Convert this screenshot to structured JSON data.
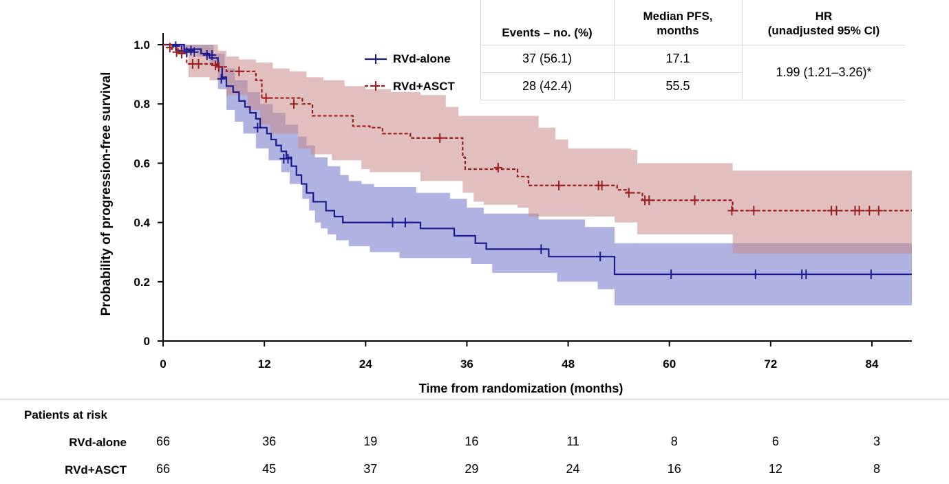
{
  "chart_data": {
    "type": "line",
    "subtype": "kaplan-meier",
    "ylabel": "Probability of progression-free survival",
    "xlabel": "Time from randomization (months)",
    "xlim": [
      0,
      88
    ],
    "ylim": [
      0,
      1.04
    ],
    "xticks": [
      0,
      12,
      24,
      36,
      48,
      60,
      72,
      84
    ],
    "yticks": [
      "0",
      "0.2",
      "0.4",
      "0.6",
      "0.8",
      "1.0"
    ],
    "yticks_values": [
      0,
      0.2,
      0.4,
      0.6,
      0.8,
      1.0
    ],
    "grid": false,
    "series": [
      {
        "name": "RVd-alone",
        "color": "#1a1a8c",
        "band_color": "#6f73c8",
        "line_style": "solid",
        "steps": [
          [
            0,
            1.0
          ],
          [
            2.5,
            0.985
          ],
          [
            4.5,
            0.97
          ],
          [
            5.5,
            0.955
          ],
          [
            6.5,
            0.925
          ],
          [
            7,
            0.89
          ],
          [
            7.5,
            0.86
          ],
          [
            8.3,
            0.84
          ],
          [
            9,
            0.81
          ],
          [
            9.7,
            0.79
          ],
          [
            10.3,
            0.77
          ],
          [
            11,
            0.75
          ],
          [
            11.5,
            0.72
          ],
          [
            12.3,
            0.7
          ],
          [
            12.8,
            0.68
          ],
          [
            13.4,
            0.66
          ],
          [
            14,
            0.64
          ],
          [
            14.6,
            0.62
          ],
          [
            15.2,
            0.59
          ],
          [
            15.8,
            0.56
          ],
          [
            16.4,
            0.53
          ],
          [
            17,
            0.5
          ],
          [
            17.8,
            0.47
          ],
          [
            19.3,
            0.44
          ],
          [
            20.3,
            0.42
          ],
          [
            21.3,
            0.4
          ],
          [
            30.5,
            0.38
          ],
          [
            34.5,
            0.355
          ],
          [
            37,
            0.33
          ],
          [
            38.3,
            0.31
          ],
          [
            45.7,
            0.285
          ],
          [
            53.5,
            0.225
          ],
          [
            88,
            0.225
          ]
        ],
        "upper": [
          [
            0,
            1.0
          ],
          [
            4.5,
            1.0
          ],
          [
            6,
            0.97
          ],
          [
            7.3,
            0.92
          ],
          [
            8.5,
            0.88
          ],
          [
            10,
            0.84
          ],
          [
            11.5,
            0.8
          ],
          [
            13,
            0.77
          ],
          [
            14.5,
            0.73
          ],
          [
            16,
            0.69
          ],
          [
            17,
            0.66
          ],
          [
            18,
            0.62
          ],
          [
            19.5,
            0.59
          ],
          [
            21,
            0.56
          ],
          [
            22,
            0.54
          ],
          [
            23.5,
            0.53
          ],
          [
            25,
            0.52
          ],
          [
            30,
            0.5
          ],
          [
            34,
            0.48
          ],
          [
            36,
            0.45
          ],
          [
            38,
            0.43
          ],
          [
            44.5,
            0.41
          ],
          [
            50,
            0.385
          ],
          [
            53.5,
            0.33
          ],
          [
            88,
            0.33
          ]
        ],
        "lower": [
          [
            0,
            1.0
          ],
          [
            2,
            0.99
          ],
          [
            4,
            0.96
          ],
          [
            5.5,
            0.93
          ],
          [
            6.5,
            0.85
          ],
          [
            7.5,
            0.78
          ],
          [
            8.5,
            0.74
          ],
          [
            9.5,
            0.7
          ],
          [
            11,
            0.65
          ],
          [
            12.5,
            0.61
          ],
          [
            14,
            0.57
          ],
          [
            15,
            0.53
          ],
          [
            16.5,
            0.48
          ],
          [
            17.3,
            0.44
          ],
          [
            18,
            0.4
          ],
          [
            18.7,
            0.38
          ],
          [
            19.5,
            0.36
          ],
          [
            20.5,
            0.34
          ],
          [
            22,
            0.32
          ],
          [
            24.5,
            0.3
          ],
          [
            28,
            0.28
          ],
          [
            36.5,
            0.26
          ],
          [
            39,
            0.23
          ],
          [
            46.7,
            0.2
          ],
          [
            51.5,
            0.175
          ],
          [
            53.5,
            0.12
          ],
          [
            88,
            0.12
          ]
        ],
        "censors": [
          [
            1.5,
            0.995
          ],
          [
            2.2,
            0.98
          ],
          [
            2.8,
            0.975
          ],
          [
            3.3,
            0.98
          ],
          [
            3.7,
            0.975
          ],
          [
            5.2,
            0.965
          ],
          [
            5.8,
            0.965
          ],
          [
            6.9,
            0.885
          ],
          [
            11.2,
            0.72
          ],
          [
            14.3,
            0.615
          ],
          [
            14.8,
            0.615
          ],
          [
            27.2,
            0.4
          ],
          [
            28.7,
            0.4
          ],
          [
            44.8,
            0.31
          ],
          [
            51.8,
            0.285
          ],
          [
            60.2,
            0.225
          ],
          [
            70.2,
            0.225
          ],
          [
            75.7,
            0.225
          ],
          [
            76.2,
            0.225
          ],
          [
            83.9,
            0.225
          ]
        ]
      },
      {
        "name": "RVd+ASCT",
        "color": "#9b1c1c",
        "band_color": "#c98a8a",
        "line_style": "dashed",
        "steps": [
          [
            0,
            1.0
          ],
          [
            1,
            0.985
          ],
          [
            2,
            0.97
          ],
          [
            2.8,
            0.935
          ],
          [
            6.5,
            0.925
          ],
          [
            7.5,
            0.91
          ],
          [
            9,
            0.91
          ],
          [
            11,
            0.88
          ],
          [
            11.7,
            0.82
          ],
          [
            16.5,
            0.8
          ],
          [
            17.7,
            0.76
          ],
          [
            22.5,
            0.725
          ],
          [
            24.5,
            0.72
          ],
          [
            26,
            0.7
          ],
          [
            29.3,
            0.685
          ],
          [
            35.5,
            0.62
          ],
          [
            35.8,
            0.58
          ],
          [
            42,
            0.555
          ],
          [
            43.3,
            0.525
          ],
          [
            53.8,
            0.51
          ],
          [
            55,
            0.5
          ],
          [
            56.8,
            0.475
          ],
          [
            67.5,
            0.44
          ],
          [
            88,
            0.44
          ]
        ],
        "upper": [
          [
            0,
            1.0
          ],
          [
            5,
            1.0
          ],
          [
            6.5,
            0.98
          ],
          [
            7.5,
            0.96
          ],
          [
            9,
            0.95
          ],
          [
            11,
            0.94
          ],
          [
            13,
            0.92
          ],
          [
            15,
            0.91
          ],
          [
            17,
            0.89
          ],
          [
            19,
            0.88
          ],
          [
            21.5,
            0.86
          ],
          [
            24,
            0.85
          ],
          [
            27,
            0.84
          ],
          [
            30.5,
            0.83
          ],
          [
            33.5,
            0.79
          ],
          [
            35,
            0.76
          ],
          [
            44.5,
            0.72
          ],
          [
            46.5,
            0.68
          ],
          [
            48,
            0.65
          ],
          [
            55.5,
            0.645
          ],
          [
            56.2,
            0.6
          ],
          [
            67,
            0.6
          ],
          [
            67.5,
            0.575
          ],
          [
            88,
            0.575
          ]
        ],
        "lower": [
          [
            0,
            1.0
          ],
          [
            1.5,
            0.97
          ],
          [
            3,
            0.89
          ],
          [
            5.5,
            0.88
          ],
          [
            7.5,
            0.83
          ],
          [
            10,
            0.78
          ],
          [
            11.5,
            0.73
          ],
          [
            12.7,
            0.7
          ],
          [
            16,
            0.65
          ],
          [
            17.5,
            0.63
          ],
          [
            20,
            0.61
          ],
          [
            23.5,
            0.58
          ],
          [
            24.5,
            0.57
          ],
          [
            30.5,
            0.54
          ],
          [
            35.5,
            0.5
          ],
          [
            36.8,
            0.47
          ],
          [
            38,
            0.46
          ],
          [
            42,
            0.45
          ],
          [
            43.3,
            0.42
          ],
          [
            53.5,
            0.4
          ],
          [
            56.2,
            0.36
          ],
          [
            67.5,
            0.295
          ],
          [
            88,
            0.295
          ]
        ],
        "censors": [
          [
            0.8,
            0.99
          ],
          [
            1.6,
            0.975
          ],
          [
            2.2,
            0.97
          ],
          [
            3.5,
            0.935
          ],
          [
            4.2,
            0.935
          ],
          [
            6.2,
            0.93
          ],
          [
            6.6,
            0.925
          ],
          [
            9,
            0.91
          ],
          [
            12.2,
            0.82
          ],
          [
            15.5,
            0.8
          ],
          [
            32.8,
            0.685
          ],
          [
            39.7,
            0.585
          ],
          [
            46.9,
            0.525
          ],
          [
            51.6,
            0.525
          ],
          [
            52,
            0.525
          ],
          [
            55.2,
            0.5
          ],
          [
            57.1,
            0.475
          ],
          [
            57.6,
            0.475
          ],
          [
            63,
            0.475
          ],
          [
            67.4,
            0.44
          ],
          [
            70,
            0.44
          ],
          [
            79.2,
            0.44
          ],
          [
            79.8,
            0.44
          ],
          [
            82,
            0.44
          ],
          [
            82.5,
            0.44
          ],
          [
            83.7,
            0.44
          ],
          [
            84.8,
            0.44
          ]
        ]
      }
    ]
  },
  "summary_table": {
    "headers": [
      "Events – no. (%)",
      "Median PFS, months",
      "HR (unadjusted 95% CI)"
    ],
    "header_lines": [
      [
        "Events – no. (%)"
      ],
      [
        "Median PFS,",
        "months"
      ],
      [
        "HR",
        "(unadjusted 95% CI)"
      ]
    ],
    "rows": [
      {
        "label": "RVd-alone",
        "events": "37 (56.1)",
        "median": "17.1"
      },
      {
        "label": "RVd+ASCT",
        "events": "28 (42.4)",
        "median": "55.5"
      }
    ],
    "hr": "1.99 (1.21–3.26)*"
  },
  "risk_table": {
    "title": "Patients at risk",
    "rows": [
      {
        "label": "RVd-alone",
        "values": [
          "66",
          "36",
          "19",
          "16",
          "11",
          "8",
          "6",
          "3"
        ]
      },
      {
        "label": "RVd+ASCT",
        "values": [
          "66",
          "45",
          "37",
          "29",
          "24",
          "16",
          "12",
          "8"
        ]
      }
    ]
  }
}
